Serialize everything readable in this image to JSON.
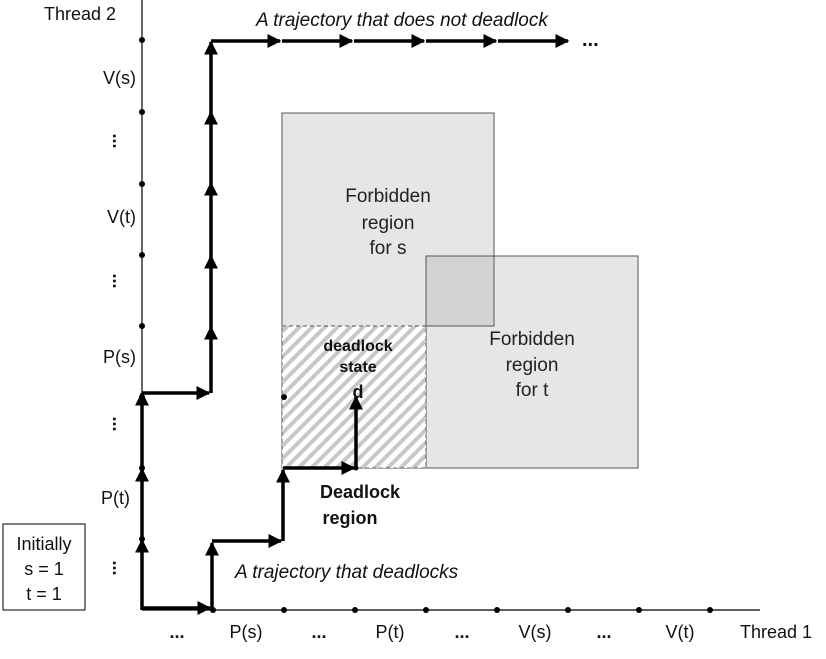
{
  "axes": {
    "x_title": "Thread 1",
    "y_title": "Thread 2",
    "x_ticks": [
      "...",
      "P(s)",
      "...",
      "P(t)",
      "...",
      "V(s)",
      "...",
      "V(t)"
    ],
    "y_ticks": [
      "...",
      "P(t)",
      "...",
      "P(s)",
      "...",
      "V(t)",
      "...",
      "V(s)"
    ]
  },
  "initial_box": {
    "line1": "Initially",
    "line2": "s = 1",
    "line3": "t = 1"
  },
  "region_s": {
    "line1": "Forbidden",
    "line2": "region",
    "line3": "for s"
  },
  "region_t": {
    "line1": "Forbidden",
    "line2": "region",
    "line3": "for t"
  },
  "deadlock_state": {
    "line1": "deadlock",
    "line2": "state",
    "line3": "d"
  },
  "deadlock_region": {
    "line1": "Deadlock",
    "line2": "region"
  },
  "trajectories": {
    "no_deadlock": "A trajectory that does not deadlock",
    "deadlock": "A trajectory that deadlocks",
    "ellipsis": "..."
  },
  "colors": {
    "region_fill": "#e6e6e6",
    "overlap_fill": "#d2d2d2",
    "hatch": "#c8c8c8",
    "line": "#000000"
  }
}
